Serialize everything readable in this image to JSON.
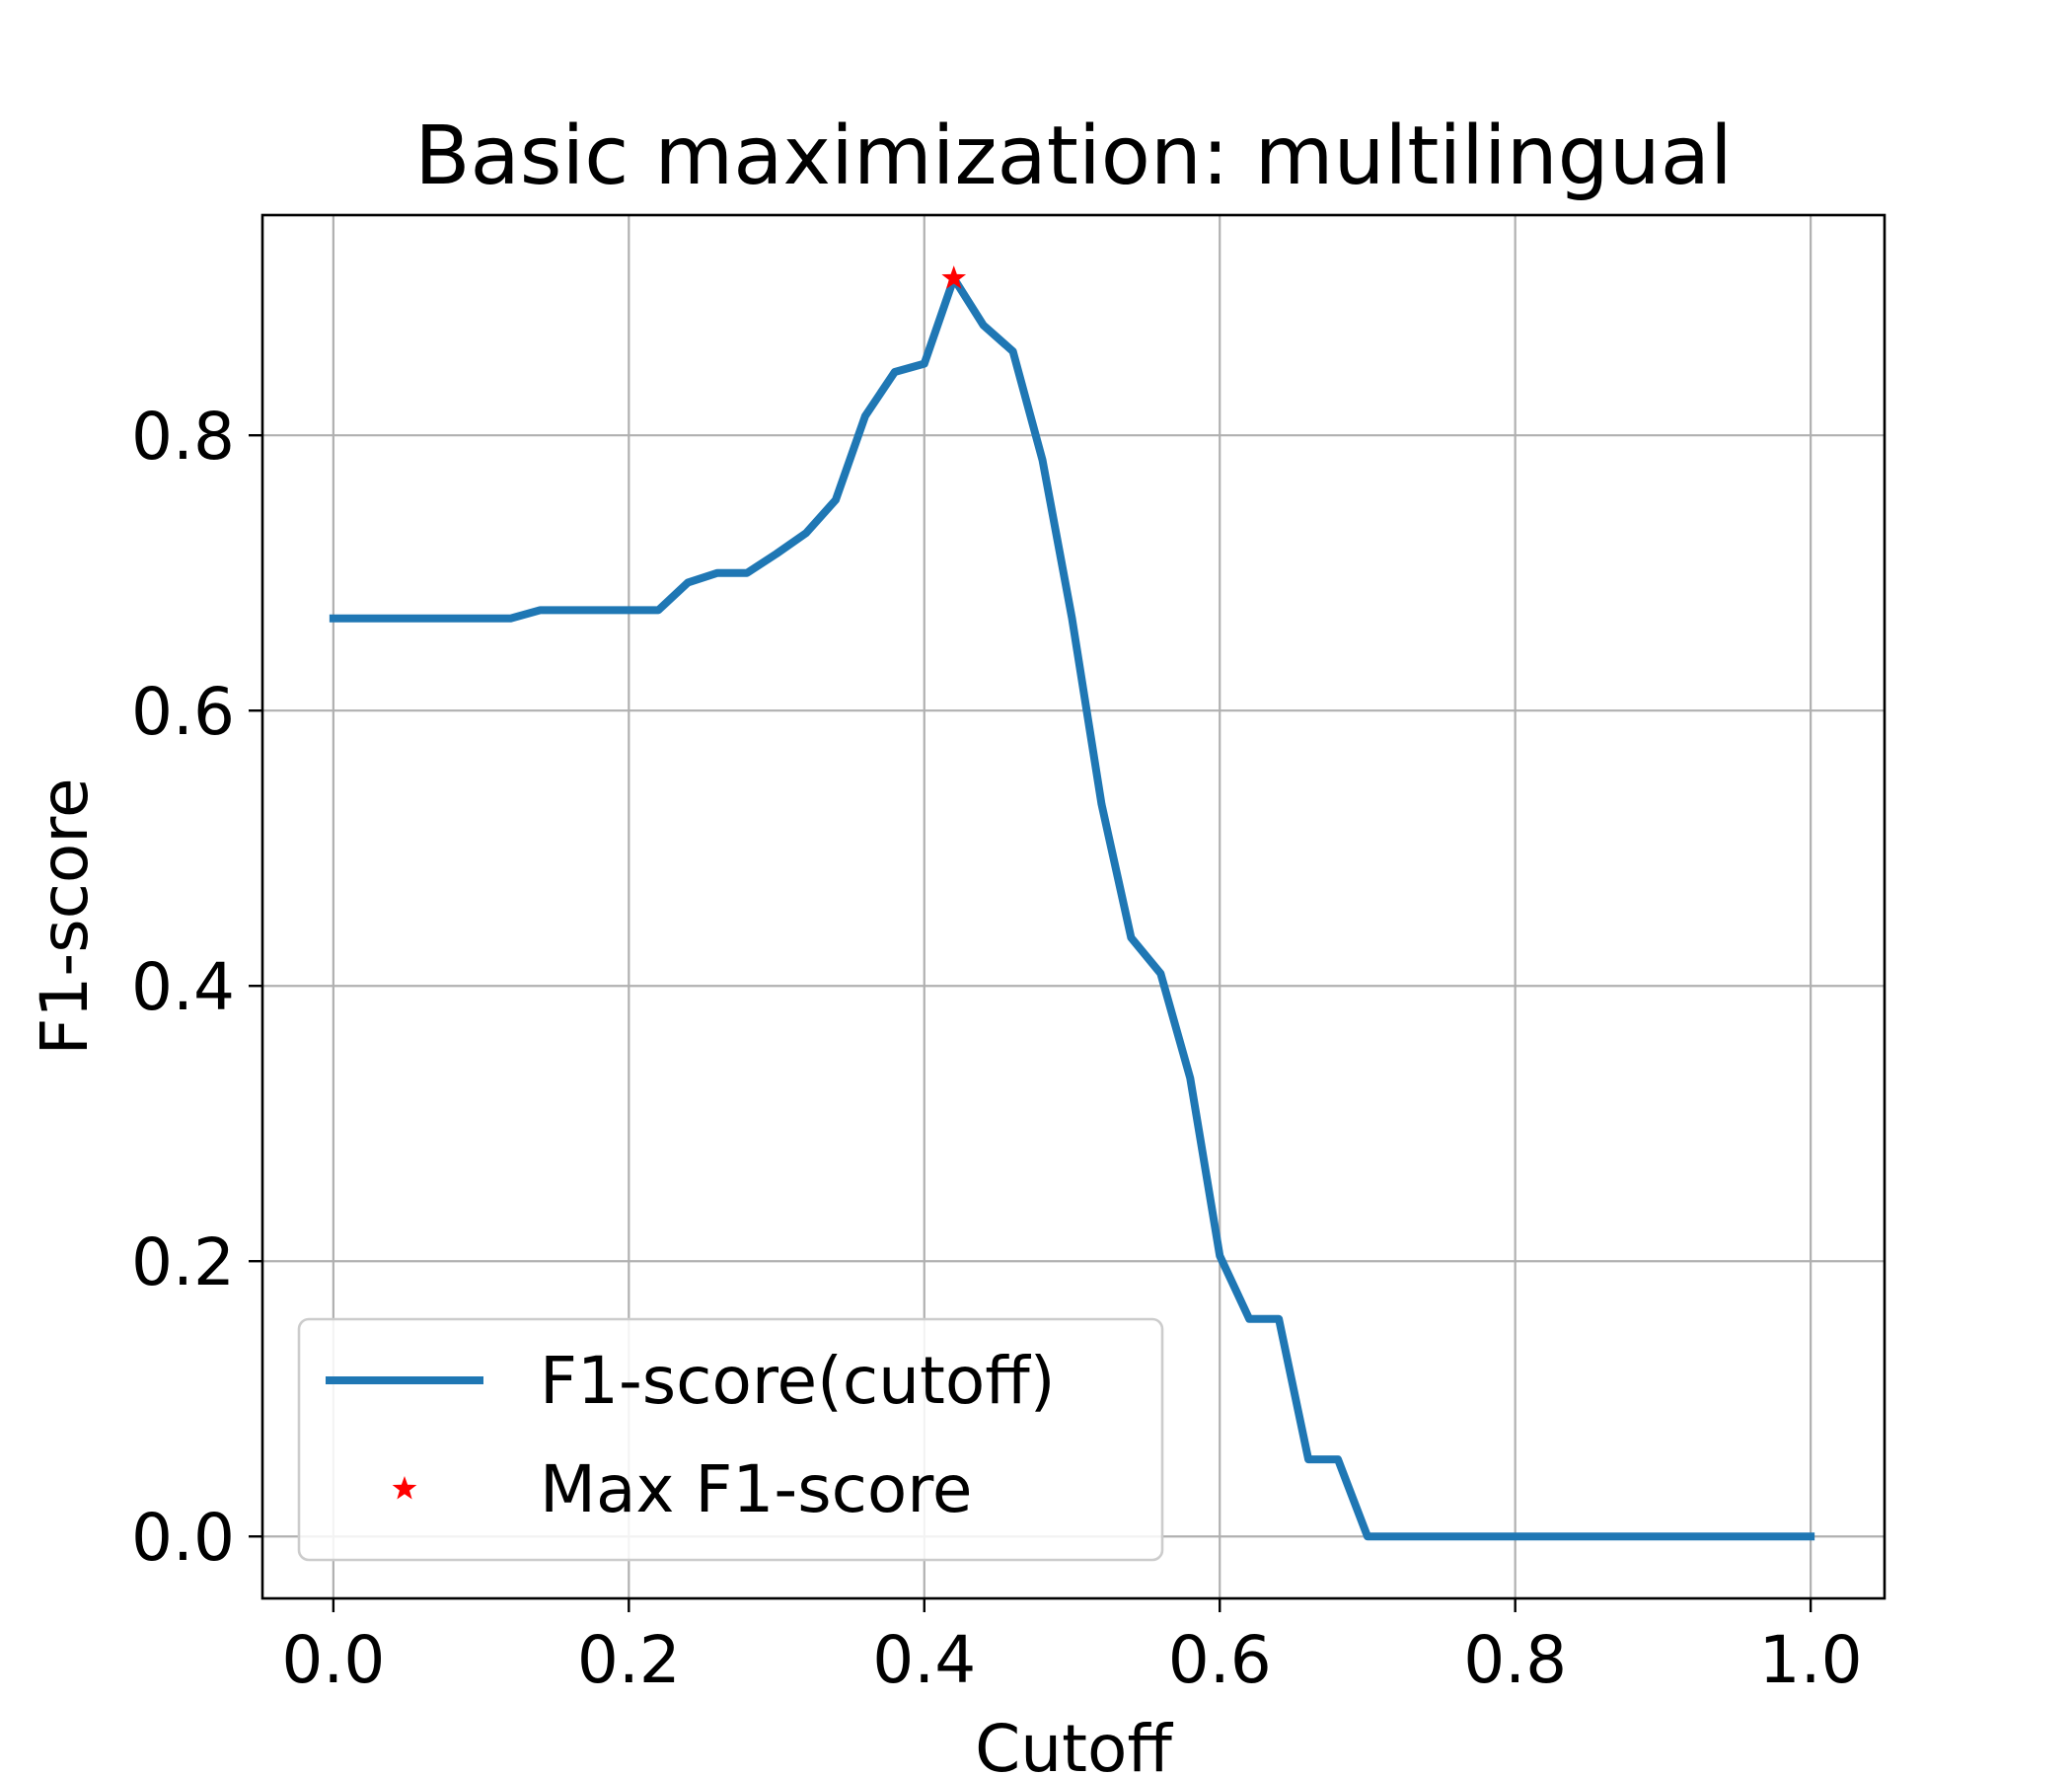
{
  "chart_data": {
    "type": "line",
    "title": "Basic maximization: multilingual",
    "xlabel": "Cutoff",
    "ylabel": "F1-score",
    "xlim": [
      -0.048,
      1.05
    ],
    "ylim": [
      -0.045,
      0.96
    ],
    "grid": true,
    "legend_position": "lower-left",
    "xticks": [
      0.0,
      0.2,
      0.4,
      0.6,
      0.8,
      1.0
    ],
    "xtick_labels": [
      "0.0",
      "0.2",
      "0.4",
      "0.6",
      "0.8",
      "1.0"
    ],
    "yticks": [
      0.0,
      0.2,
      0.4,
      0.6,
      0.8
    ],
    "ytick_labels": [
      "0.0",
      "0.2",
      "0.4",
      "0.6",
      "0.8"
    ],
    "series": [
      {
        "name": "F1-score(cutoff)",
        "color": "#1f77b4",
        "style": "line",
        "x": [
          0.0,
          0.02,
          0.04,
          0.06,
          0.08,
          0.1,
          0.12,
          0.14,
          0.16,
          0.18,
          0.2,
          0.22,
          0.24,
          0.26,
          0.28,
          0.3,
          0.32,
          0.34,
          0.36,
          0.38,
          0.4,
          0.42,
          0.44,
          0.46,
          0.48,
          0.5,
          0.52,
          0.54,
          0.56,
          0.58,
          0.6,
          0.62,
          0.64,
          0.66,
          0.68,
          0.7,
          0.72,
          0.74,
          0.76,
          0.78,
          0.8,
          0.82,
          0.84,
          0.86,
          0.88,
          0.9,
          0.92,
          0.94,
          0.96,
          0.98,
          1.0
        ],
        "y": [
          0.667,
          0.667,
          0.667,
          0.667,
          0.667,
          0.667,
          0.667,
          0.673,
          0.673,
          0.673,
          0.673,
          0.673,
          0.693,
          0.7,
          0.7,
          0.714,
          0.729,
          0.753,
          0.814,
          0.846,
          0.852,
          0.914,
          0.88,
          0.861,
          0.782,
          0.667,
          0.532,
          0.435,
          0.409,
          0.333,
          0.204,
          0.158,
          0.158,
          0.056,
          0.056,
          0.0,
          0.0,
          0.0,
          0.0,
          0.0,
          0.0,
          0.0,
          0.0,
          0.0,
          0.0,
          0.0,
          0.0,
          0.0,
          0.0,
          0.0,
          0.0
        ]
      },
      {
        "name": "Max F1-score",
        "color": "#ff0000",
        "style": "marker",
        "marker": "star",
        "x": [
          0.42
        ],
        "y": [
          0.914
        ]
      }
    ]
  }
}
